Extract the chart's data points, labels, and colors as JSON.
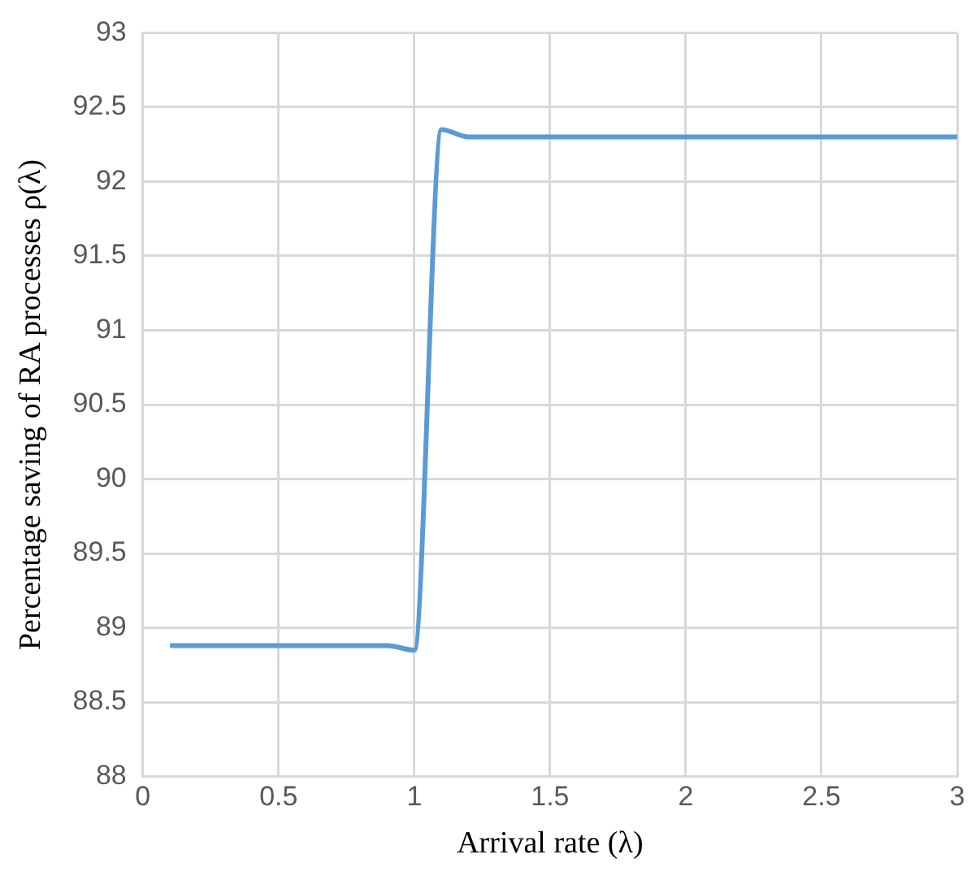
{
  "chart_data": {
    "type": "line",
    "xlabel": "Arrival rate (λ)",
    "ylabel": "Percentage saving of RA processes ρ(λ)",
    "x": [
      0.1,
      0.9,
      1.0,
      1.1,
      1.2,
      3.0
    ],
    "series": [
      {
        "color": "#5b9bd5",
        "values": [
          88.88,
          88.88,
          88.85,
          92.35,
          92.3,
          92.3
        ]
      }
    ],
    "xlim": [
      0,
      3
    ],
    "xticks": [
      0,
      0.5,
      1,
      1.5,
      2,
      2.5,
      3
    ],
    "ylim": [
      88,
      93
    ],
    "yticks": [
      88,
      88.5,
      89,
      89.5,
      90,
      90.5,
      91,
      91.5,
      92,
      92.5,
      93
    ],
    "grid": true,
    "legend": false,
    "marker": "none",
    "line_style": "solid"
  }
}
